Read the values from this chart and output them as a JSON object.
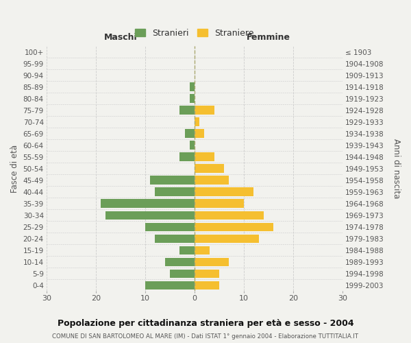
{
  "age_groups": [
    "100+",
    "95-99",
    "90-94",
    "85-89",
    "80-84",
    "75-79",
    "70-74",
    "65-69",
    "60-64",
    "55-59",
    "50-54",
    "45-49",
    "40-44",
    "35-39",
    "30-34",
    "25-29",
    "20-24",
    "15-19",
    "10-14",
    "5-9",
    "0-4"
  ],
  "birth_years": [
    "≤ 1903",
    "1904-1908",
    "1909-1913",
    "1914-1918",
    "1919-1923",
    "1924-1928",
    "1929-1933",
    "1934-1938",
    "1939-1943",
    "1944-1948",
    "1949-1953",
    "1954-1958",
    "1959-1963",
    "1964-1968",
    "1969-1973",
    "1974-1978",
    "1979-1983",
    "1984-1988",
    "1989-1993",
    "1994-1998",
    "1999-2003"
  ],
  "maschi": [
    0,
    0,
    0,
    1,
    1,
    3,
    0,
    2,
    1,
    3,
    0,
    9,
    8,
    19,
    18,
    10,
    8,
    3,
    6,
    5,
    10
  ],
  "femmine": [
    0,
    0,
    0,
    0,
    0,
    4,
    1,
    2,
    0,
    4,
    6,
    7,
    12,
    10,
    14,
    16,
    13,
    3,
    7,
    5,
    5
  ],
  "maschi_color": "#6b9e58",
  "femmine_color": "#f5bf30",
  "background_color": "#f2f2ee",
  "grid_color": "#cccccc",
  "title": "Popolazione per cittadinanza straniera per età e sesso - 2004",
  "subtitle": "COMUNE DI SAN BARTOLOMEO AL MARE (IM) - Dati ISTAT 1° gennaio 2004 - Elaborazione TUTTITALIA.IT",
  "xlabel_left": "Maschi",
  "xlabel_right": "Femmine",
  "ylabel_left": "Fasce di età",
  "ylabel_right": "Anni di nascita",
  "legend_maschi": "Stranieri",
  "legend_femmine": "Straniere",
  "xlim": 30,
  "bar_height": 0.75
}
